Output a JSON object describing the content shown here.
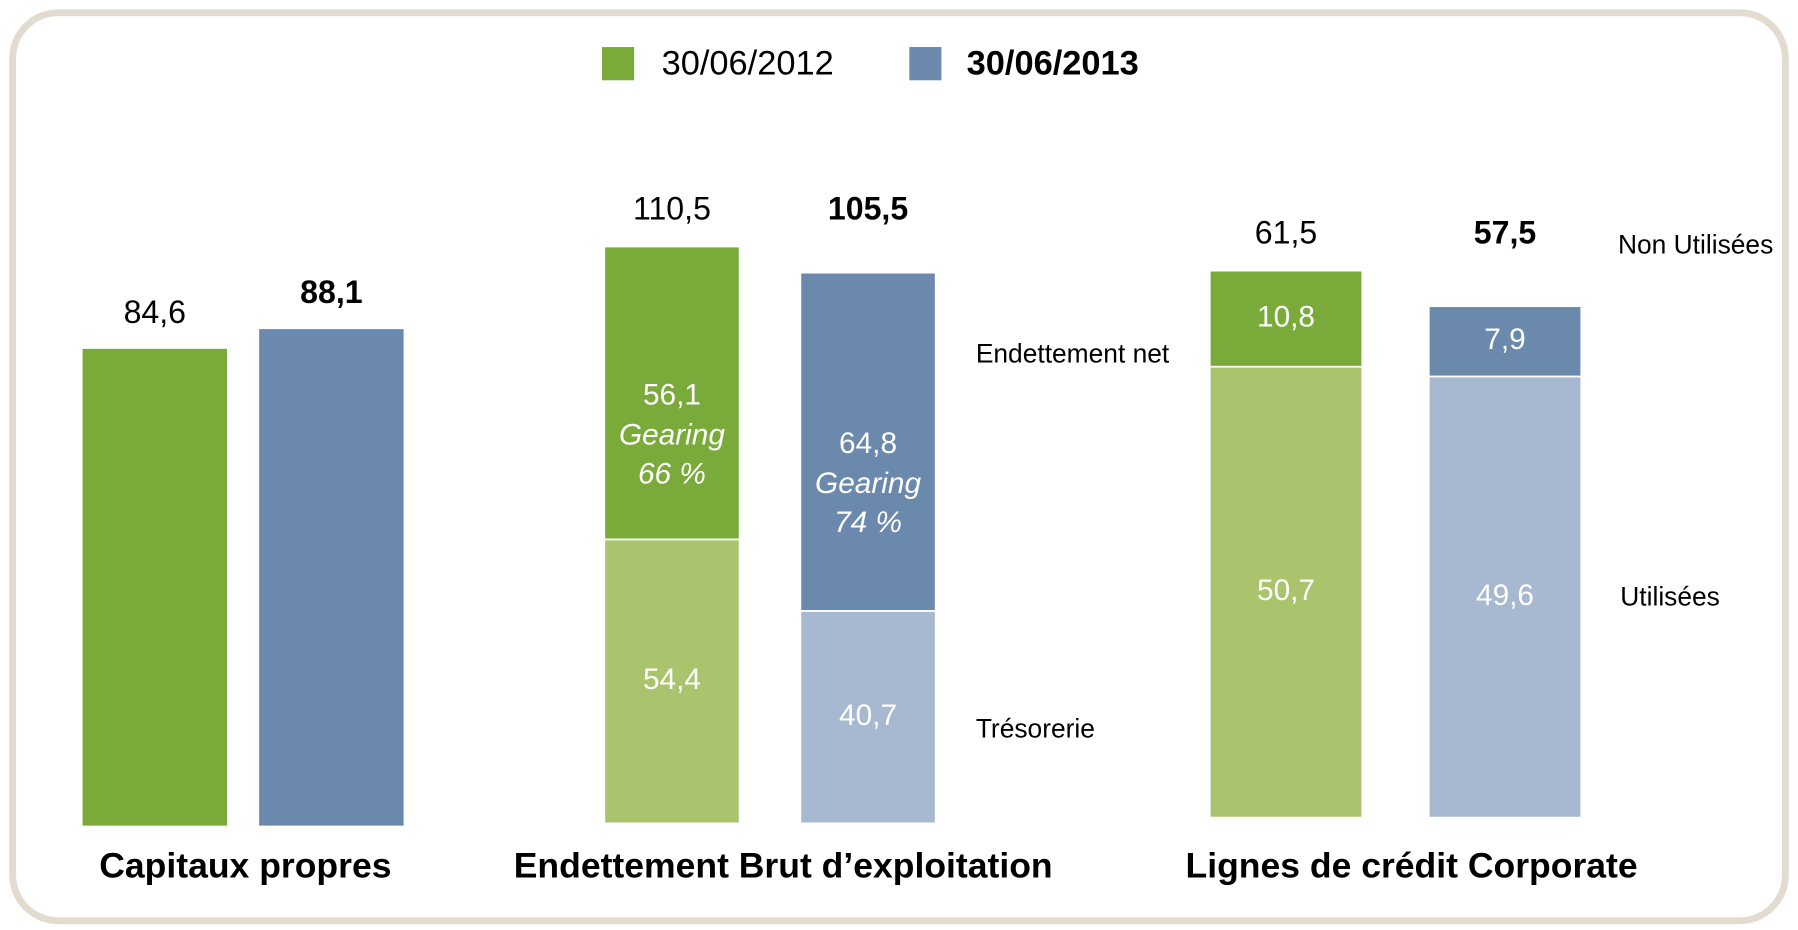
{
  "legend": [
    {
      "name": "30/06/2012",
      "color": "#7aab3a"
    },
    {
      "name": "30/06/2013",
      "color": "#6a89ad"
    }
  ],
  "chart_data": [
    {
      "type": "bar",
      "title": "Capitaux propres",
      "values": [
        84.6,
        88.1
      ],
      "value_labels": [
        "84,6",
        "88,1"
      ],
      "colors": [
        "#7aab3a",
        "#6a89ad"
      ]
    },
    {
      "type": "stacked_bar",
      "title": "Endettement Brut d’exploitation",
      "totals": [
        110.5,
        105.5
      ],
      "total_labels": [
        "110,5",
        "105,5"
      ],
      "series": [
        {
          "name": "Trésorerie",
          "colors": [
            "#a9c46c",
            "#a7b9d0"
          ],
          "values": [
            54.4,
            40.7
          ],
          "value_labels": [
            "54,4",
            "40,7"
          ]
        },
        {
          "name": "Endettement net",
          "colors": [
            "#7aab3a",
            "#6a89ad"
          ],
          "values": [
            56.1,
            64.8
          ],
          "value_labels": [
            "56,1",
            "64,8"
          ],
          "annotations": [
            [
              "Gearing",
              "66 %"
            ],
            [
              "Gearing",
              "74 %"
            ]
          ]
        }
      ]
    },
    {
      "type": "stacked_bar",
      "title": "Lignes de crédit Corporate",
      "totals": [
        61.5,
        57.5
      ],
      "total_labels": [
        "61,5",
        "57,5"
      ],
      "series": [
        {
          "name": "Utilisées",
          "colors": [
            "#a9c46c",
            "#a7b9d0"
          ],
          "values": [
            50.7,
            49.6
          ],
          "value_labels": [
            "50,7",
            "49,6"
          ]
        },
        {
          "name": "Non Utilisées",
          "colors": [
            "#7aab3a",
            "#6a89ad"
          ],
          "values": [
            10.8,
            7.9
          ],
          "value_labels": [
            "10,8",
            "7,9"
          ]
        }
      ]
    }
  ]
}
